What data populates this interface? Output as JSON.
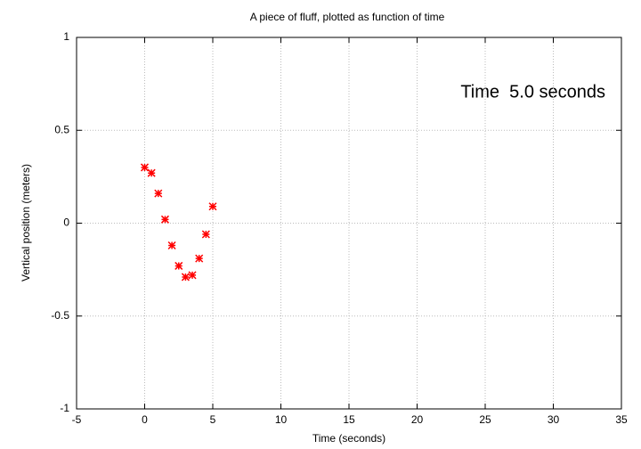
{
  "chart_data": {
    "type": "scatter",
    "title": "A piece of fluff, plotted as function of time",
    "x_label": "Time (seconds)",
    "y_label": "Vertical position (meters)",
    "annotation": "Time  5.0 seconds",
    "x": [
      0,
      0.5,
      1,
      1.5,
      2,
      2.5,
      3,
      3.5,
      4,
      4.5,
      5
    ],
    "values": [
      0.3,
      0.27,
      0.16,
      0.02,
      -0.12,
      -0.23,
      -0.29,
      -0.28,
      -0.19,
      -0.06,
      0.09
    ],
    "color": "#ff0000",
    "xlim": [
      -5,
      35
    ],
    "xticks": [
      -5,
      0,
      5,
      10,
      15,
      20,
      25,
      30,
      35
    ],
    "ylim": [
      -1,
      1
    ],
    "yticks": [
      -1,
      -0.5,
      0,
      0.5,
      1
    ],
    "grid": true
  }
}
